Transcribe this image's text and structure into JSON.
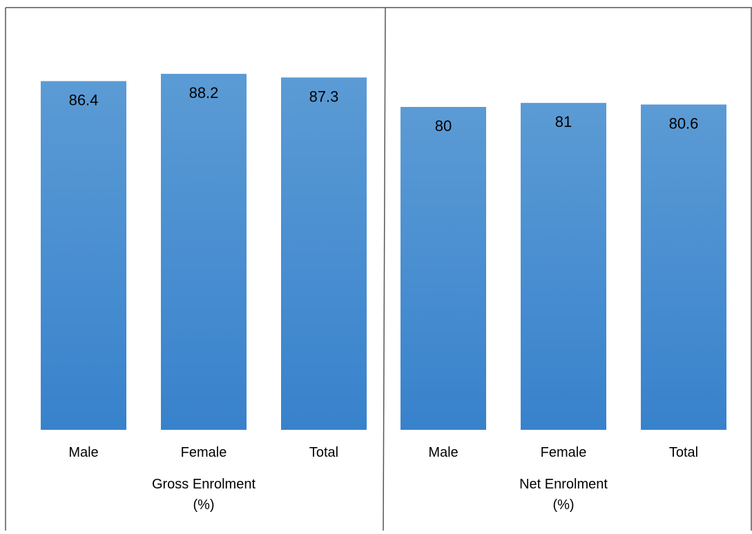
{
  "chart_data": {
    "type": "bar",
    "categories": [
      "Male",
      "Female",
      "Total"
    ],
    "groups": [
      {
        "label": [
          "Gross Enrolment",
          "(%)"
        ],
        "values": [
          86.4,
          88.2,
          87.3
        ],
        "value_labels": [
          "86.4",
          "88.2",
          "87.3"
        ]
      },
      {
        "label": [
          "Net Enrolment",
          "(%)"
        ],
        "values": [
          80,
          81,
          80.6
        ],
        "value_labels": [
          "80",
          "81",
          "80.6"
        ]
      }
    ],
    "ylim": [
      0,
      100
    ],
    "grid": false,
    "legend": "none",
    "colors": {
      "bar_top": "#5b9bd5",
      "bar_bottom": "#3882cc",
      "frame": "#555555"
    }
  }
}
